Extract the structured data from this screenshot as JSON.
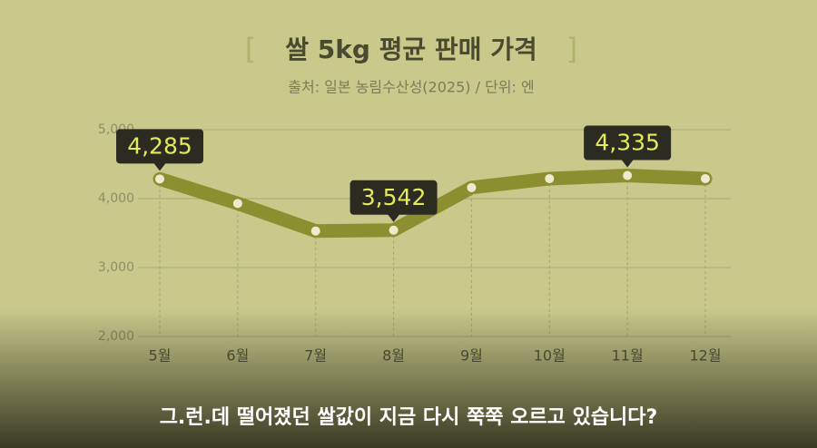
{
  "chart_data": {
    "type": "line",
    "title": "쌀 5kg 평균 판매 가격",
    "subtitle": "출처: 일본 농림수산성(2025) / 단위: 엔",
    "caption": "그.런.데 떨어졌던 쌀값이 지금 다시 쭉쭉 오르고 있습니다?",
    "categories": [
      "5월",
      "6월",
      "7월",
      "8월",
      "9월",
      "10월",
      "11월",
      "12월"
    ],
    "values": [
      4285,
      3930,
      3530,
      3542,
      4160,
      4290,
      4335,
      4290
    ],
    "value_labels": [
      "4,285",
      null,
      null,
      "3,542",
      null,
      null,
      "4,335",
      null
    ],
    "color": "#8b8f2f",
    "ylim": [
      2000,
      5000
    ],
    "yticks": [
      {
        "value": 2000,
        "label": "2,000"
      },
      {
        "value": 3000,
        "label": "3,000"
      },
      {
        "value": 4000,
        "label": "4,000"
      },
      {
        "value": 5000,
        "label": "5,000"
      }
    ],
    "grid": true
  }
}
